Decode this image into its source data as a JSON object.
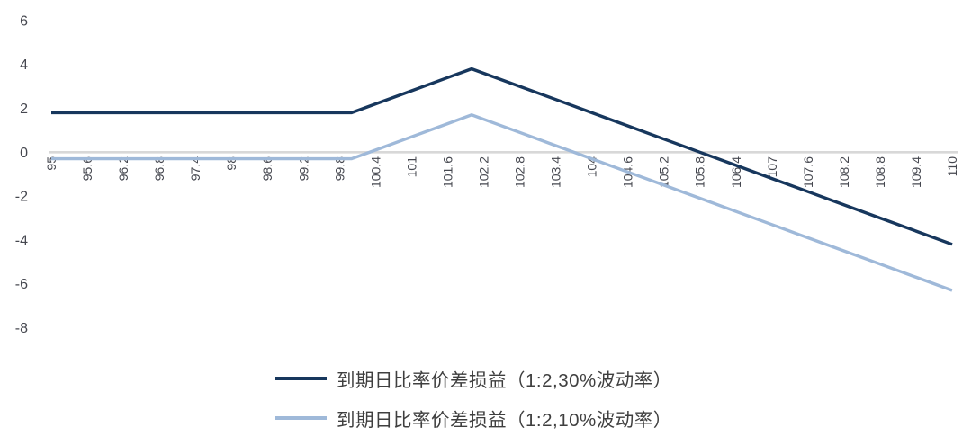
{
  "colors": {
    "series_30pct": "#17375d",
    "series_10pct": "#9fb9d9",
    "zero_gridline": "#d8d8d8",
    "axis_text": "#45474f",
    "legend_text": "#3f3f3f",
    "background": "#ffffff"
  },
  "chart_data": {
    "type": "line",
    "title": "",
    "xlabel": "",
    "ylabel": "",
    "x_range": [
      95,
      110
    ],
    "x_tick_step": 0.6,
    "x_tick_labels": [
      "95",
      "95.6",
      "96.2",
      "96.8",
      "97.4",
      "98",
      "98.6",
      "99.2",
      "99.8",
      "100.4",
      "101",
      "101.6",
      "102.2",
      "102.8",
      "103.4",
      "104",
      "104.6",
      "105.2",
      "105.8",
      "106.4",
      "107",
      "107.6",
      "108.2",
      "108.8",
      "109.4",
      "110"
    ],
    "x_tick_label_rotation_deg": -90,
    "y_ticks": [
      6,
      4,
      2,
      0,
      -2,
      -4,
      -6,
      -8
    ],
    "ylim": [
      -8,
      6
    ],
    "grid": "single horizontal gray line at y=0 (category axis), no vertical gridlines, no plot border",
    "legend_position": "bottom-center",
    "series": [
      {
        "name": "到期日比率价差损益（1:2,30%波动率）",
        "color": "#17375d",
        "points": [
          [
            95,
            1.8
          ],
          [
            95.6,
            1.8
          ],
          [
            96.2,
            1.8
          ],
          [
            96.8,
            1.8
          ],
          [
            97.4,
            1.8
          ],
          [
            98,
            1.8
          ],
          [
            98.6,
            1.8
          ],
          [
            99.2,
            1.8
          ],
          [
            99.8,
            1.8
          ],
          [
            100,
            1.8
          ],
          [
            100.4,
            2.2
          ],
          [
            101,
            2.8
          ],
          [
            101.6,
            3.4
          ],
          [
            102,
            3.8
          ],
          [
            102.2,
            3.6
          ],
          [
            102.8,
            3
          ],
          [
            103.4,
            2.4
          ],
          [
            104,
            1.8
          ],
          [
            104.6,
            1.2
          ],
          [
            105.2,
            0.6
          ],
          [
            105.8,
            0
          ],
          [
            106.4,
            -0.6
          ],
          [
            107,
            -1.2
          ],
          [
            107.6,
            -1.8
          ],
          [
            108.2,
            -2.4
          ],
          [
            108.8,
            -3
          ],
          [
            109.4,
            -3.6
          ],
          [
            110,
            -4.2
          ]
        ]
      },
      {
        "name": "到期日比率价差损益（1:2,10%波动率）",
        "color": "#9fb9d9",
        "points": [
          [
            95,
            -0.3
          ],
          [
            95.6,
            -0.3
          ],
          [
            96.2,
            -0.3
          ],
          [
            96.8,
            -0.3
          ],
          [
            97.4,
            -0.3
          ],
          [
            98,
            -0.3
          ],
          [
            98.6,
            -0.3
          ],
          [
            99.2,
            -0.3
          ],
          [
            99.8,
            -0.3
          ],
          [
            100,
            -0.3
          ],
          [
            100.4,
            0.1
          ],
          [
            101,
            0.7
          ],
          [
            101.6,
            1.3
          ],
          [
            102,
            1.7
          ],
          [
            102.2,
            1.5
          ],
          [
            102.8,
            0.9
          ],
          [
            103.4,
            0.3
          ],
          [
            104,
            -0.3
          ],
          [
            104.6,
            -0.9
          ],
          [
            105.2,
            -1.5
          ],
          [
            105.8,
            -2.1
          ],
          [
            106.4,
            -2.7
          ],
          [
            107,
            -3.3
          ],
          [
            107.6,
            -3.9
          ],
          [
            108.2,
            -4.5
          ],
          [
            108.8,
            -5.1
          ],
          [
            109.4,
            -5.7
          ],
          [
            110,
            -6.3
          ]
        ]
      }
    ]
  },
  "legend": {
    "items": [
      {
        "label": "到期日比率价差损益（1:2,30%波动率）"
      },
      {
        "label": "到期日比率价差损益（1:2,10%波动率）"
      }
    ]
  }
}
